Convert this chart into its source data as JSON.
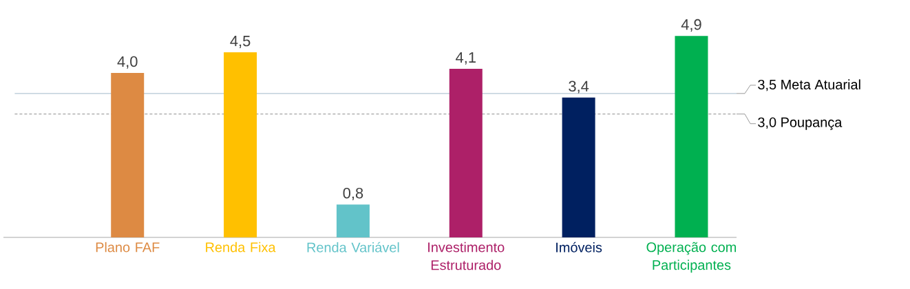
{
  "chart_data": {
    "type": "bar",
    "categories": [
      "Plano FAF",
      "Renda Fixa",
      "Renda Variável",
      "Investimento Estruturado",
      "Imóveis",
      "Operação com Participantes"
    ],
    "values": [
      4.0,
      4.5,
      0.8,
      4.1,
      3.4,
      4.9
    ],
    "value_labels": [
      "4,0",
      "4,5",
      "0,8",
      "4,1",
      "3,4",
      "4,9"
    ],
    "colors": [
      "#dd8a43",
      "#ffc000",
      "#62c3c9",
      "#ad2068",
      "#002060",
      "#00b050"
    ],
    "tick_labels": "x",
    "ref_lines": [
      {
        "axis": "y",
        "value": 3.5,
        "label": "3,5 Meta Atuarial",
        "color": "#b4c7d4",
        "line_style": "solid"
      },
      {
        "axis": "y",
        "value": 3.0,
        "label": "3,0 Poupança",
        "color": "#8c8c8c",
        "line_style": "dashed"
      }
    ]
  }
}
